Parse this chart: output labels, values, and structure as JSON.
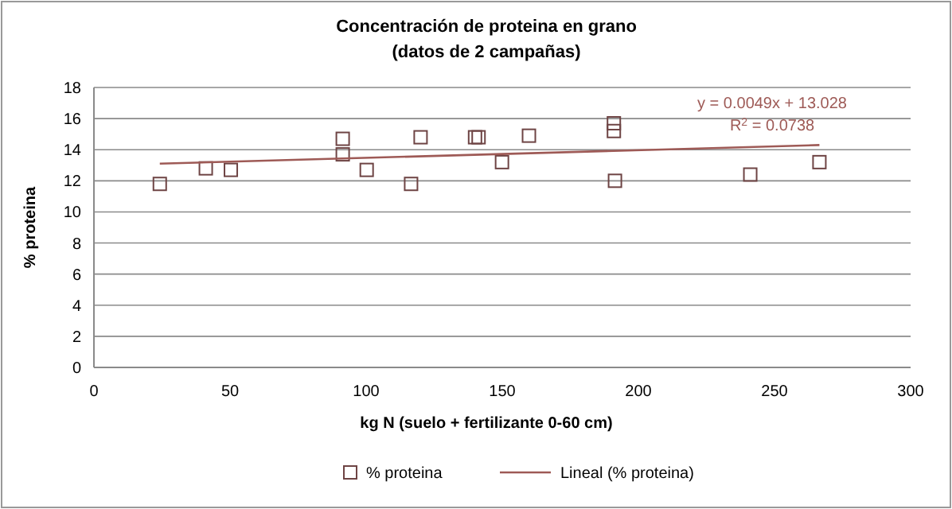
{
  "chart_data": {
    "type": "scatter",
    "title": "Concentración de proteina en grano",
    "subtitle": "(datos de 2 campañas)",
    "xlabel": "kg N (suelo + fertilizante 0-60 cm)",
    "ylabel": "% proteina",
    "xlim": [
      0,
      300
    ],
    "xticks": [
      0,
      50,
      100,
      150,
      200,
      250,
      300
    ],
    "ylim": [
      0,
      18
    ],
    "yticks": [
      0,
      2,
      4,
      6,
      8,
      10,
      12,
      14,
      16,
      18
    ],
    "grid": "y",
    "legend": "bottom",
    "marker": "square",
    "annotations": [
      "y = 0.0049x + 13.028",
      "R$^{2}$ = 0.0738"
    ],
    "series": [
      {
        "name": "% proteina",
        "color": "#6e4444",
        "x": [
          24.2,
          41.1,
          50.3,
          91.4,
          91.4,
          100.2,
          116.5,
          120,
          140,
          141.3,
          149.9,
          159.8,
          191,
          191,
          191.4,
          241.1,
          266.5
        ],
        "values": [
          11.8,
          12.8,
          12.7,
          14.7,
          13.7,
          12.7,
          11.8,
          14.8,
          14.8,
          14.8,
          13.2,
          14.9,
          15.7,
          15.2,
          12.0,
          12.4,
          13.2
        ]
      },
      {
        "name": "Lineal (% proteina)",
        "type": "line",
        "color": "#9e5a56",
        "marker": "none",
        "x": [
          24.2,
          266.5
        ],
        "values": [
          13.1,
          14.3
        ]
      }
    ]
  }
}
